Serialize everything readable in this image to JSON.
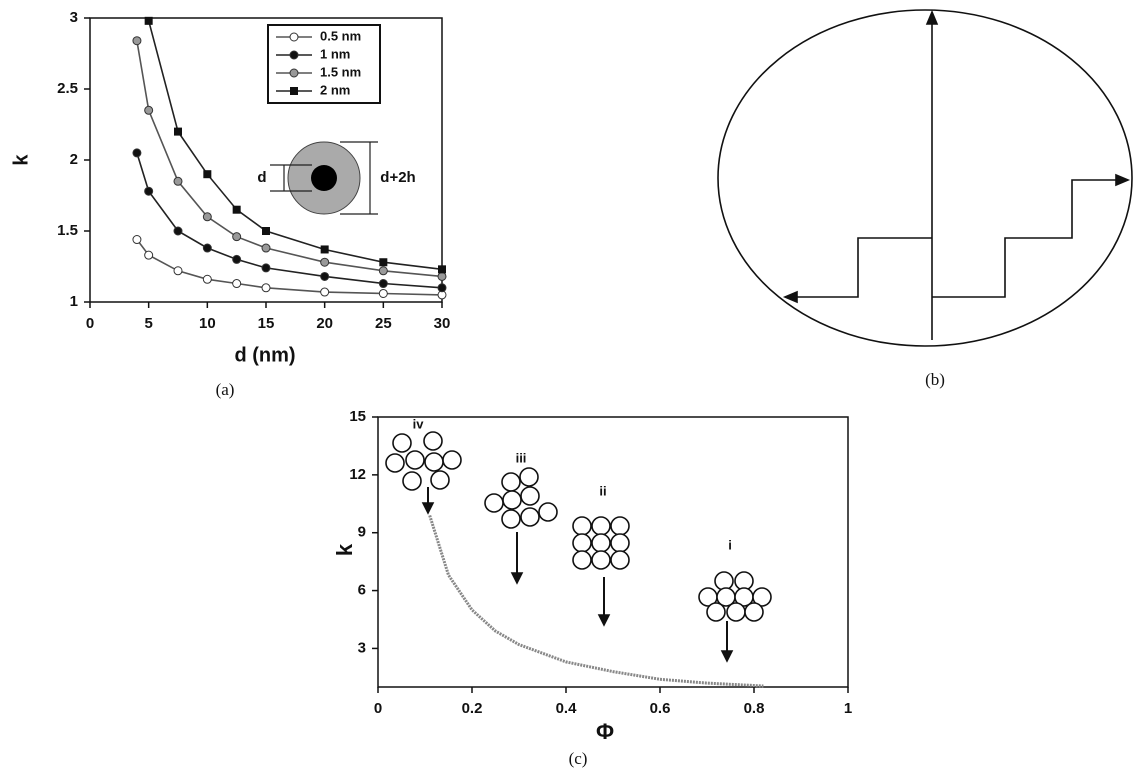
{
  "chart_data": [
    {
      "type": "line",
      "caption": "(a)",
      "xlabel": "d (nm)",
      "ylabel": "k",
      "xlim": [
        0,
        30
      ],
      "xticks": [
        0,
        5,
        10,
        15,
        20,
        25,
        30
      ],
      "ylim": [
        1,
        3
      ],
      "yticks": [
        1,
        1.5,
        2,
        2.5,
        3
      ],
      "x": [
        4,
        5,
        7.5,
        10,
        12.5,
        15,
        20,
        25,
        30
      ],
      "series": [
        {
          "name": "0.5 nm",
          "color": "#555555",
          "values": [
            1.44,
            1.33,
            1.22,
            1.16,
            1.13,
            1.1,
            1.07,
            1.06,
            1.05
          ]
        },
        {
          "name": "1 nm",
          "color": "#222222",
          "values": [
            2.05,
            1.78,
            1.5,
            1.38,
            1.3,
            1.24,
            1.18,
            1.13,
            1.1
          ]
        },
        {
          "name": "1.5 nm",
          "color": "#555555",
          "values": [
            2.84,
            2.35,
            1.85,
            1.6,
            1.46,
            1.38,
            1.28,
            1.22,
            1.18
          ]
        },
        {
          "name": "2 nm",
          "color": "#222222",
          "values": [
            null,
            2.98,
            2.2,
            1.9,
            1.65,
            1.5,
            1.37,
            1.28,
            1.23
          ]
        }
      ],
      "annotations": [
        "d",
        "d+2h"
      ]
    },
    {
      "type": "line",
      "caption": "(c)",
      "xlabel": "Φ",
      "ylabel": "k",
      "xlim": [
        0,
        1
      ],
      "xticks": [
        0,
        0.2,
        0.4,
        0.6,
        0.8,
        1
      ],
      "ylim": [
        1,
        15
      ],
      "yticks": [
        3,
        6,
        9,
        12,
        15
      ],
      "x": [
        0.11,
        0.15,
        0.2,
        0.25,
        0.3,
        0.4,
        0.5,
        0.6,
        0.7,
        0.82
      ],
      "values": [
        9.9,
        6.8,
        5.0,
        3.9,
        3.2,
        2.3,
        1.8,
        1.4,
        1.2,
        1.05
      ],
      "color": "#888888",
      "annotations": [
        "iv",
        "iii",
        "ii",
        "i"
      ]
    }
  ],
  "panel_b": {
    "caption": "(b)"
  }
}
